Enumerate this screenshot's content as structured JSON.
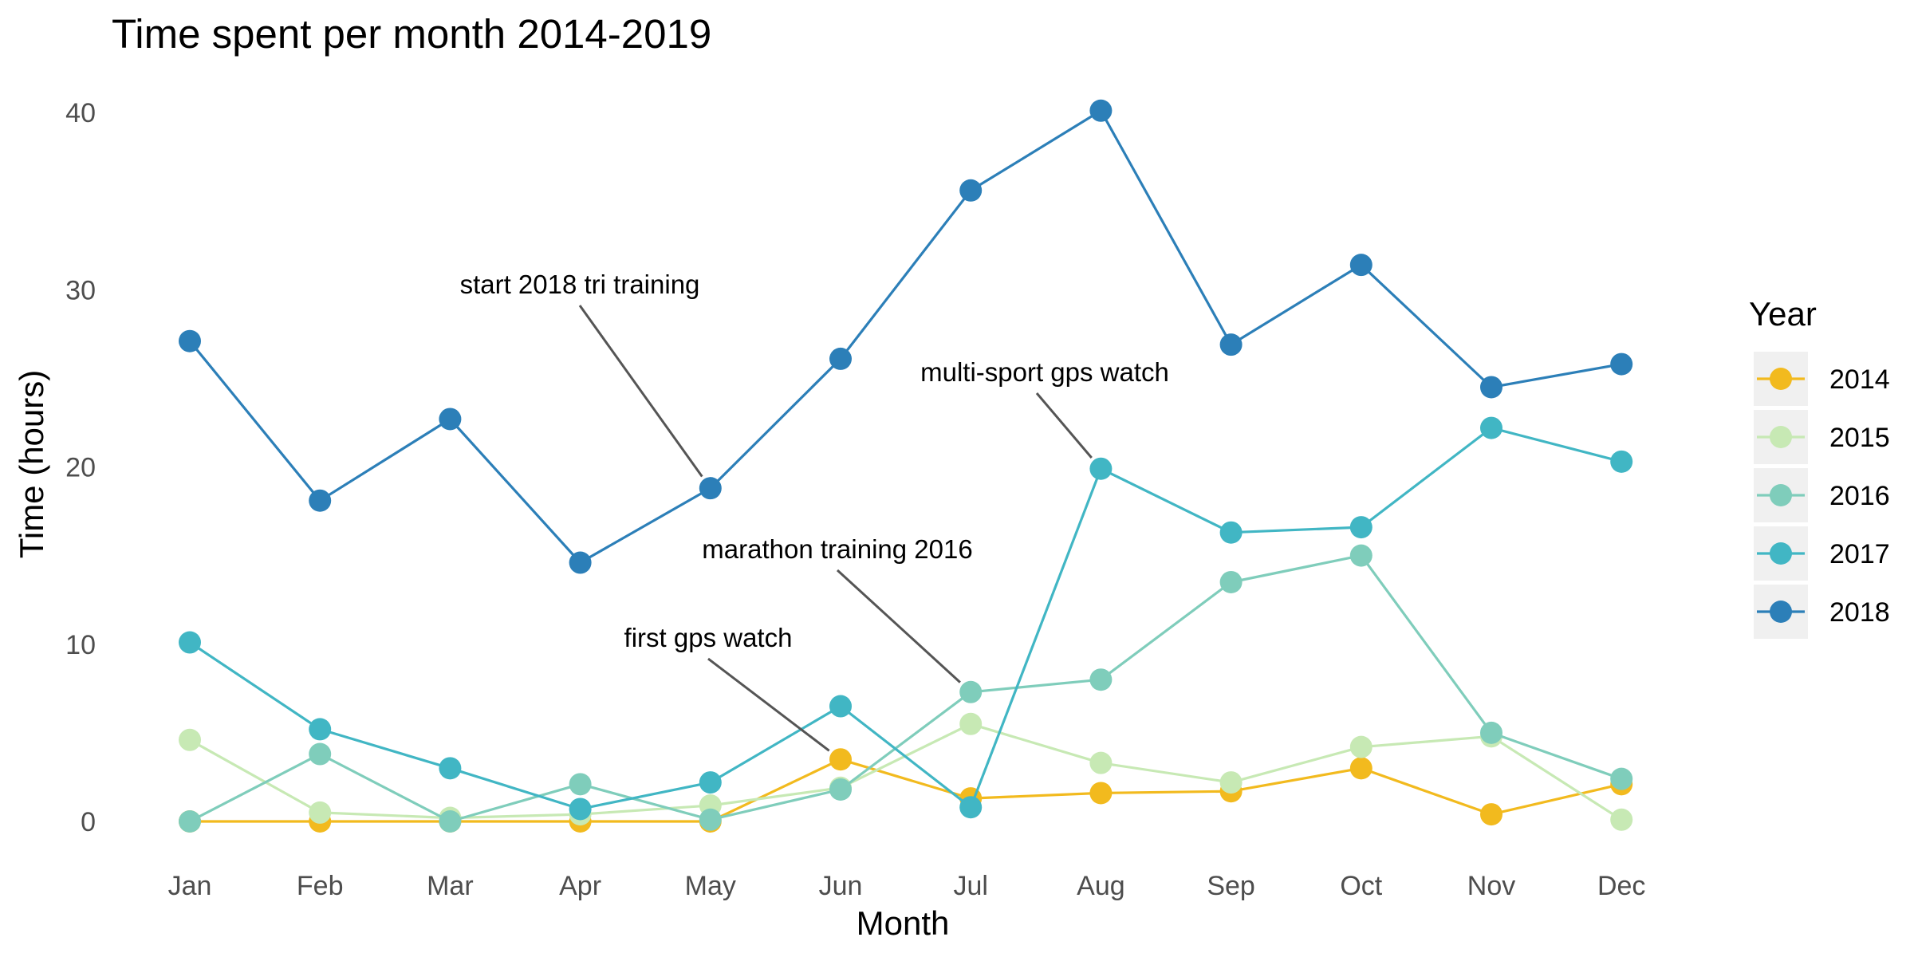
{
  "chart_data": {
    "type": "line",
    "title": "Time spent per month 2014-2019",
    "xlabel": "Month",
    "ylabel": "Time (hours)",
    "categories": [
      "Jan",
      "Feb",
      "Mar",
      "Apr",
      "May",
      "Jun",
      "Jul",
      "Aug",
      "Sep",
      "Oct",
      "Nov",
      "Dec"
    ],
    "ylim": [
      -3.5,
      41.5
    ],
    "yticks": [
      0,
      10,
      20,
      30,
      40
    ],
    "grid": false,
    "legend": {
      "title": "Year",
      "placement": "right"
    },
    "series": [
      {
        "name": "2014",
        "color": "#F2BA1E",
        "values": [
          0,
          0,
          0,
          0,
          0,
          3.5,
          1.3,
          1.6,
          1.7,
          3.0,
          0.4,
          2.1
        ]
      },
      {
        "name": "2015",
        "color": "#C7E9B4",
        "values": [
          4.6,
          0.5,
          0.2,
          0.4,
          0.9,
          1.9,
          5.5,
          3.3,
          2.2,
          4.2,
          4.8,
          0.1
        ]
      },
      {
        "name": "2016",
        "color": "#7FCDBB",
        "values": [
          0,
          3.8,
          0,
          2.1,
          0.1,
          1.8,
          7.3,
          8.0,
          13.5,
          15.0,
          5.0,
          2.4
        ]
      },
      {
        "name": "2017",
        "color": "#41B6C4",
        "values": [
          10.1,
          5.2,
          3.0,
          0.7,
          2.2,
          6.5,
          0.8,
          19.9,
          16.3,
          16.6,
          22.2,
          20.3
        ]
      },
      {
        "name": "2018",
        "color": "#2C7FB8",
        "values": [
          27.1,
          18.1,
          22.7,
          14.6,
          18.8,
          26.1,
          35.6,
          40.1,
          26.9,
          31.4,
          24.5,
          25.8
        ]
      }
    ],
    "annotations": [
      {
        "text": "start 2018 tri training",
        "x": "May",
        "y": 18.8
      },
      {
        "text": "multi-sport gps watch",
        "x": "Aug",
        "y": 19.9
      },
      {
        "text": "marathon training 2016",
        "x": "Jul",
        "y": 7.3
      },
      {
        "text": "first gps watch",
        "x": "Jun",
        "y": 3.5
      }
    ]
  }
}
